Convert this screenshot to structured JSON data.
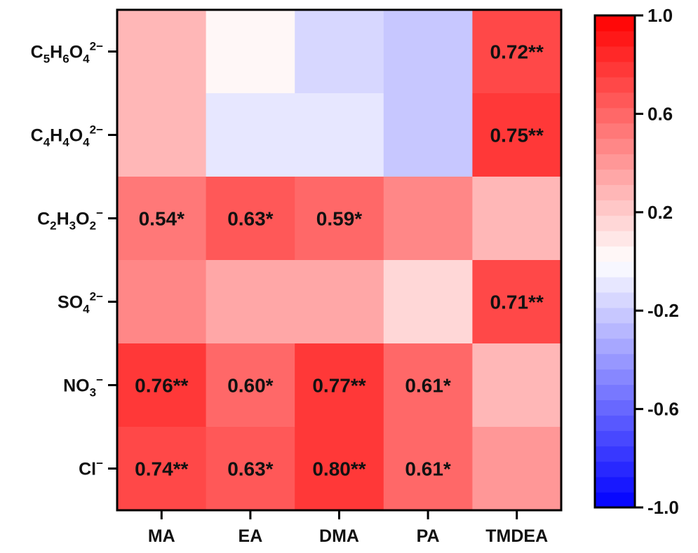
{
  "chart_data": {
    "type": "heatmap",
    "columns": [
      "MA",
      "EA",
      "DMA",
      "PA",
      "TMDEA"
    ],
    "rows": [
      {
        "label": "C5H6O4 2−",
        "parts": [
          [
            "C",
            ""
          ],
          [
            "5",
            "sub"
          ],
          [
            "H",
            ""
          ],
          [
            "6",
            "sub"
          ],
          [
            "O",
            ""
          ],
          [
            "4",
            "sub"
          ],
          [
            "2−",
            "sup"
          ]
        ]
      },
      {
        "label": "C4H4O4 2−",
        "parts": [
          [
            "C",
            ""
          ],
          [
            "4",
            "sub"
          ],
          [
            "H",
            ""
          ],
          [
            "4",
            "sub"
          ],
          [
            "O",
            ""
          ],
          [
            "4",
            "sub"
          ],
          [
            "2−",
            "sup"
          ]
        ]
      },
      {
        "label": "C2H3O2 −",
        "parts": [
          [
            "C",
            ""
          ],
          [
            "2",
            "sub"
          ],
          [
            "H",
            ""
          ],
          [
            "3",
            "sub"
          ],
          [
            "O",
            ""
          ],
          [
            "2",
            "sub"
          ],
          [
            "−",
            "sup"
          ]
        ]
      },
      {
        "label": "SO4 2−",
        "parts": [
          [
            "SO",
            ""
          ],
          [
            "4",
            "sub"
          ],
          [
            "2−",
            "sup"
          ]
        ]
      },
      {
        "label": "NO3 −",
        "parts": [
          [
            "NO",
            ""
          ],
          [
            "3",
            "sub"
          ],
          [
            "−",
            "sup"
          ]
        ]
      },
      {
        "label": "Cl −",
        "parts": [
          [
            "Cl",
            ""
          ],
          [
            "−",
            "sup"
          ]
        ]
      }
    ],
    "values": [
      [
        0.28,
        0.02,
        -0.15,
        -0.25,
        0.72
      ],
      [
        0.28,
        -0.08,
        -0.08,
        -0.25,
        0.75
      ],
      [
        0.54,
        0.63,
        0.59,
        0.44,
        0.3
      ],
      [
        0.45,
        0.36,
        0.36,
        0.18,
        0.71
      ],
      [
        0.76,
        0.6,
        0.77,
        0.61,
        0.3
      ],
      [
        0.74,
        0.63,
        0.8,
        0.61,
        0.38
      ]
    ],
    "cell_labels": [
      [
        "",
        "",
        "",
        "",
        "0.72**"
      ],
      [
        "",
        "",
        "",
        "",
        "0.75**"
      ],
      [
        "0.54*",
        "0.63*",
        "0.59*",
        "",
        ""
      ],
      [
        "",
        "",
        "",
        "",
        "0.71**"
      ],
      [
        "0.76**",
        "0.60*",
        "0.77**",
        "0.61*",
        ""
      ],
      [
        "0.74**",
        "0.63*",
        "0.80**",
        "0.61*",
        ""
      ]
    ],
    "colorbar": {
      "min": -1.0,
      "max": 1.0,
      "tick_values": [
        1.0,
        0.6,
        0.2,
        -0.2,
        -0.6,
        -1.0
      ],
      "tick_labels": [
        "1.0",
        "0.6",
        "0.2",
        "-0.2",
        "-0.6",
        "-1.0"
      ],
      "low_color": "#0000ff",
      "mid_color": "#ffffff",
      "high_color": "#ff0000",
      "steps": 32
    }
  }
}
